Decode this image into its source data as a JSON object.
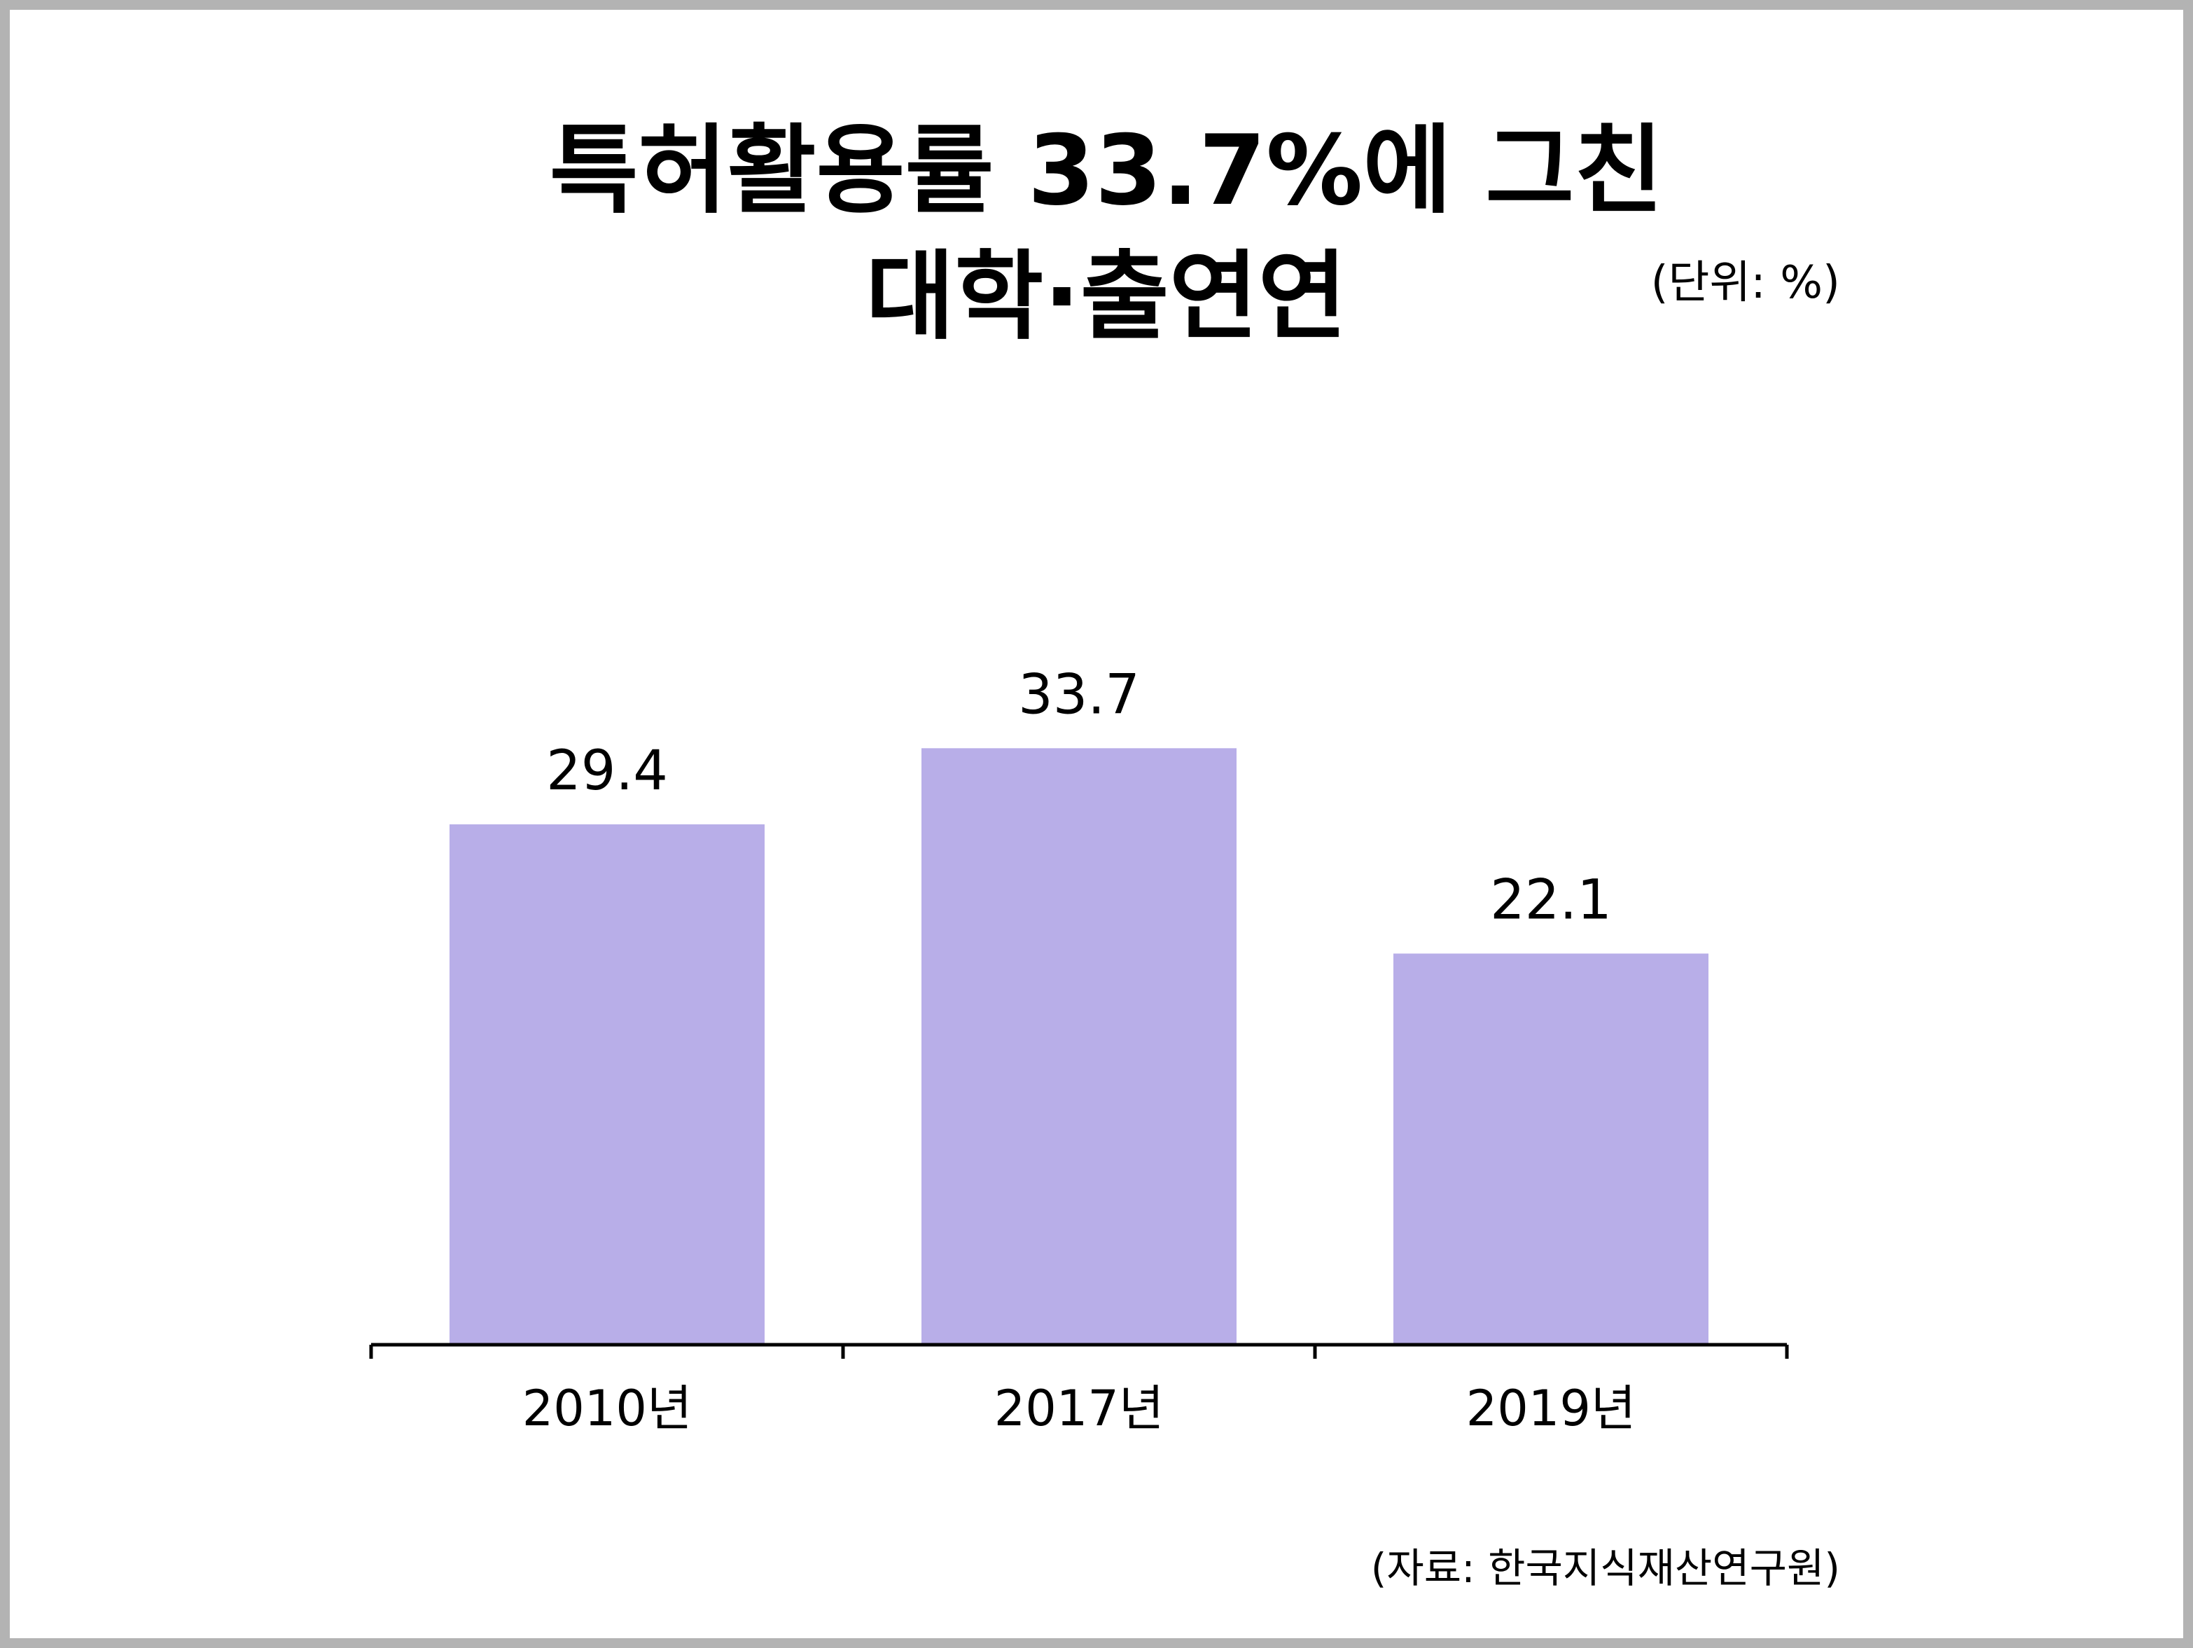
{
  "chart_data": {
    "type": "bar",
    "title_line1": "특허활용률 33.7%에 그친",
    "title_line2": "대학·출연연",
    "unit": "(단위: %)",
    "source": "(자료: 한국지식재산연구원)",
    "categories": [
      "2010년",
      "2017년",
      "2019년"
    ],
    "values": [
      29.4,
      33.7,
      22.1
    ],
    "value_labels": [
      "29.4",
      "33.7",
      "22.1"
    ],
    "ylim": [
      0,
      55
    ],
    "grid": false,
    "legend": "none",
    "bar_color": "#b8aee8",
    "axis_color": "#000000"
  }
}
